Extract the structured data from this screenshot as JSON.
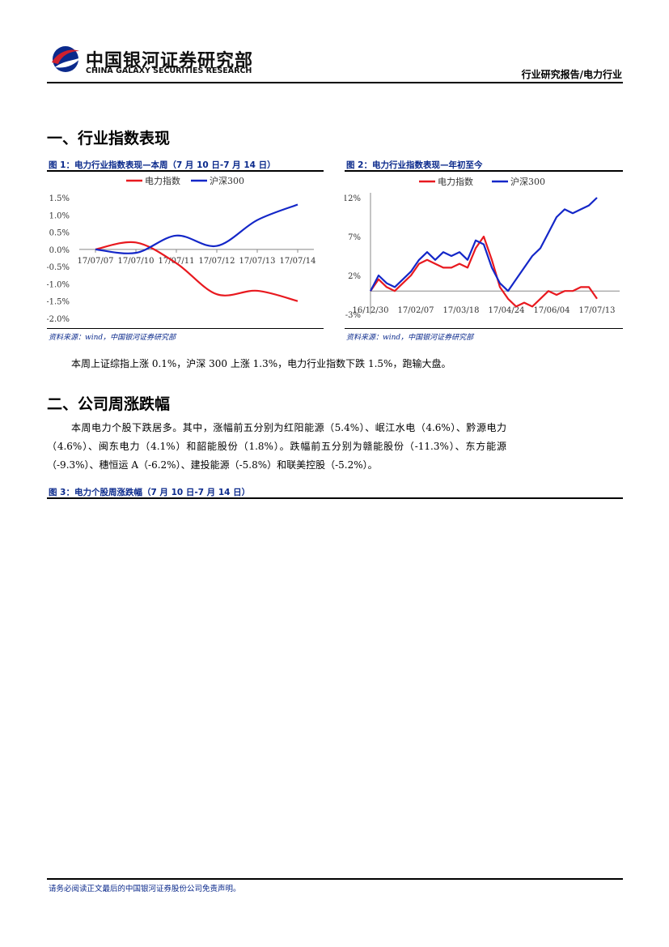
{
  "header": {
    "logo_cn": "中国银河证券研究部",
    "logo_en": "CHINA GALAXY SECURITIES RESEARCH",
    "report_type": "行业研究报告/电力行业"
  },
  "section1": {
    "title": "一、行业指数表现"
  },
  "figure1": {
    "title": "图 1：电力行业指数表现—本周（7 月 10 日-7 月 14 日）",
    "source": "资料来源：wind，中国银河证券研究部"
  },
  "figure2": {
    "title": "图 2：电力行业指数表现—年初至今",
    "source": "资料来源：wind，中国银河证券研究部"
  },
  "paragraph1": "本周上证综指上涨 0.1%，沪深 300 上涨 1.3%，电力行业指数下跌 1.5%，跑输大盘。",
  "section2": {
    "title": "二、公司周涨跌幅"
  },
  "paragraph2": "本周电力个股下跌居多。其中，涨幅前五分别为红阳能源（5.4%）、岷江水电（4.6%）、黔源电力（4.6%）、闽东电力（4.1%）和韶能股份（1.8%）。跌幅前五分别为赣能股份（-11.3%）、东方能源（-9.3%）、穗恒运 A（-6.2%）、建投能源（-5.8%）和联美控股（-5.2%）。",
  "figure3": {
    "title": "图 3：电力个股周涨跌幅（7 月 10 日-7 月 14 日）"
  },
  "footer": {
    "disclaimer": "请务必阅读正文最后的中国银河证券股份公司免责声明。"
  },
  "colors": {
    "power": "#e8191f",
    "hs300": "#1427c8",
    "accent": "#0b2a8c",
    "logo_red": "#d0202e"
  },
  "chart_data": [
    {
      "type": "line",
      "x": [
        "17/07/07",
        "17/07/10",
        "17/07/11",
        "17/07/12",
        "17/07/13",
        "17/07/14"
      ],
      "xtick_labels": [
        "17/07/07",
        "17/07/10",
        "17/07/11",
        "17/07/12",
        "17/07/13",
        "17/07/14"
      ],
      "yticks": [
        "1.5%",
        "1.0%",
        "0.5%",
        "0.0%",
        "-0.5%",
        "-1.0%",
        "-1.5%",
        "-2.0%"
      ],
      "ylim": [
        -2.0,
        1.5
      ],
      "series": [
        {
          "name": "电力指数",
          "values": [
            0.0,
            0.2,
            -0.4,
            -1.3,
            -1.2,
            -1.5
          ]
        },
        {
          "name": "沪深300",
          "values": [
            0.0,
            -0.1,
            0.4,
            0.1,
            0.85,
            1.3
          ]
        }
      ],
      "legend": "top-center"
    },
    {
      "type": "line",
      "x_dates": [
        "16/12/30",
        "17/01/05",
        "17/01/12",
        "17/01/19",
        "17/01/26",
        "17/02/07",
        "17/02/14",
        "17/02/21",
        "17/02/28",
        "17/03/07",
        "17/03/14",
        "17/03/21",
        "17/03/28",
        "17/04/05",
        "17/04/12",
        "17/04/19",
        "17/04/24",
        "17/05/01",
        "17/05/08",
        "17/05/15",
        "17/05/22",
        "17/05/29",
        "17/06/05",
        "17/06/12",
        "17/06/19",
        "17/06/26",
        "17/07/03",
        "17/07/10",
        "17/07/13"
      ],
      "xtick_labels": [
        "16/12/30",
        "17/02/07",
        "17/03/18",
        "17/04/24",
        "17/06/04",
        "17/07/13"
      ],
      "yticks": [
        "12%",
        "7%",
        "2%",
        "-3%"
      ],
      "ylim": [
        -3,
        12
      ],
      "series": [
        {
          "name": "电力指数",
          "values": [
            0.0,
            1.5,
            0.5,
            0.0,
            1.0,
            2.0,
            3.5,
            4.0,
            3.5,
            3.0,
            3.0,
            3.5,
            3.0,
            5.5,
            7.0,
            4.0,
            0.5,
            -1.0,
            -2.0,
            -1.5,
            -2.0,
            -1.0,
            0.0,
            -0.5,
            0.0,
            0.0,
            0.5,
            0.5,
            -1.0
          ]
        },
        {
          "name": "沪深300",
          "values": [
            0.0,
            2.0,
            1.0,
            0.5,
            1.5,
            2.5,
            4.0,
            5.0,
            4.0,
            5.0,
            4.5,
            5.0,
            4.0,
            6.5,
            6.0,
            3.0,
            1.0,
            0.0,
            1.5,
            3.0,
            4.5,
            5.5,
            7.5,
            9.5,
            10.5,
            10.0,
            10.5,
            11.0,
            12.0
          ]
        }
      ],
      "legend": "top-center"
    }
  ]
}
